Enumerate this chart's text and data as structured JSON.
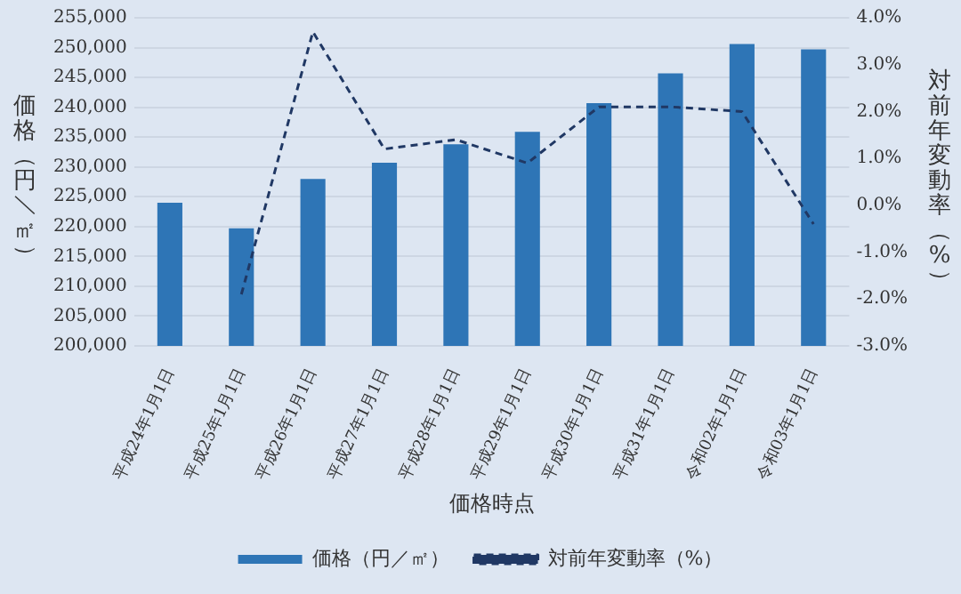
{
  "chart_data": {
    "type": "bar",
    "xlabel": "価格時点",
    "ylabel": "価格（円／㎡）",
    "y2label": "対前年変動率（%）",
    "categories": [
      "平成24年1月1日",
      "平成25年1月1日",
      "平成26年1月1日",
      "平成27年1月1日",
      "平成28年1月1日",
      "平成29年1月1日",
      "平成30年1月1日",
      "平成31年1月1日",
      "令和02年1月1日",
      "令和03年1月1日"
    ],
    "series": [
      {
        "name": "価格（円／㎡）",
        "color": "#2e75b6",
        "values": [
          224000,
          219700,
          228000,
          230700,
          233800,
          235900,
          240700,
          245700,
          250600,
          249700
        ]
      },
      {
        "name": "対前年変動率（%）",
        "type": "line",
        "axis": "y2",
        "color": "#203864",
        "line_style": "dashed",
        "marker": "none",
        "values": [
          null,
          -1.9,
          3.7,
          1.2,
          1.4,
          0.9,
          2.1,
          2.1,
          2.0,
          -0.4
        ]
      }
    ],
    "ylim": [
      200000,
      255000
    ],
    "yticks": [
      {
        "value": 200000,
        "label": "200,000"
      },
      {
        "value": 205000,
        "label": "205,000"
      },
      {
        "value": 210000,
        "label": "210,000"
      },
      {
        "value": 215000,
        "label": "215,000"
      },
      {
        "value": 220000,
        "label": "220,000"
      },
      {
        "value": 225000,
        "label": "225,000"
      },
      {
        "value": 230000,
        "label": "230,000"
      },
      {
        "value": 235000,
        "label": "235,000"
      },
      {
        "value": 240000,
        "label": "240,000"
      },
      {
        "value": 245000,
        "label": "245,000"
      },
      {
        "value": 250000,
        "label": "250,000"
      },
      {
        "value": 255000,
        "label": "255,000"
      }
    ],
    "y2lim": [
      -3,
      4
    ],
    "y2ticks": [
      {
        "value": -3,
        "label": "-3.0%"
      },
      {
        "value": -2,
        "label": "-2.0%"
      },
      {
        "value": -1,
        "label": "-1.0%"
      },
      {
        "value": 0,
        "label": "0.0%"
      },
      {
        "value": 1,
        "label": "1.0%"
      },
      {
        "value": 2,
        "label": "2.0%"
      },
      {
        "value": 3,
        "label": "3.0%"
      },
      {
        "value": 4,
        "label": "4.0%"
      }
    ],
    "grid": "y",
    "legend": "bottom"
  }
}
